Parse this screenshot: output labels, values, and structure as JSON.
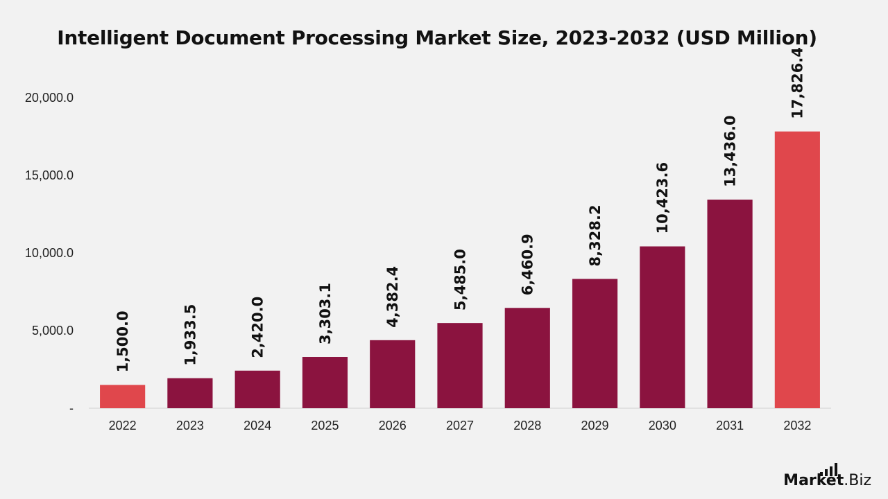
{
  "chart_data": {
    "type": "bar",
    "title": "Intelligent Document Processing Market Size, 2023-2032 (USD Million)",
    "categories": [
      "2022",
      "2023",
      "2024",
      "2025",
      "2026",
      "2027",
      "2028",
      "2029",
      "2030",
      "2031",
      "2032"
    ],
    "values": [
      1500.0,
      1933.5,
      2420.0,
      3303.1,
      4382.4,
      5485.0,
      6460.9,
      8328.2,
      10423.6,
      13436.0,
      17826.4
    ],
    "value_labels": [
      "1,500.0",
      "1,933.5",
      "2,420.0",
      "3,303.1",
      "4,382.4",
      "5,485.0",
      "6,460.9",
      "8,328.2",
      "10,423.6",
      "13,436.0",
      "17,826.4"
    ],
    "highlighted_categories": [
      "2022",
      "2032"
    ],
    "ylim": [
      0,
      20000
    ],
    "yticks": [
      0,
      5000,
      10000,
      15000,
      20000
    ],
    "ytick_labels": [
      "-",
      "5,000.0",
      "10,000.0",
      "15,000.0",
      "20,000.0"
    ],
    "xlabel": "",
    "ylabel": "",
    "grid": false,
    "colors": {
      "bar": "#8b133f",
      "highlight": "#e0474c"
    }
  },
  "brand": {
    "part1": "Market",
    "part2": ".Biz"
  }
}
